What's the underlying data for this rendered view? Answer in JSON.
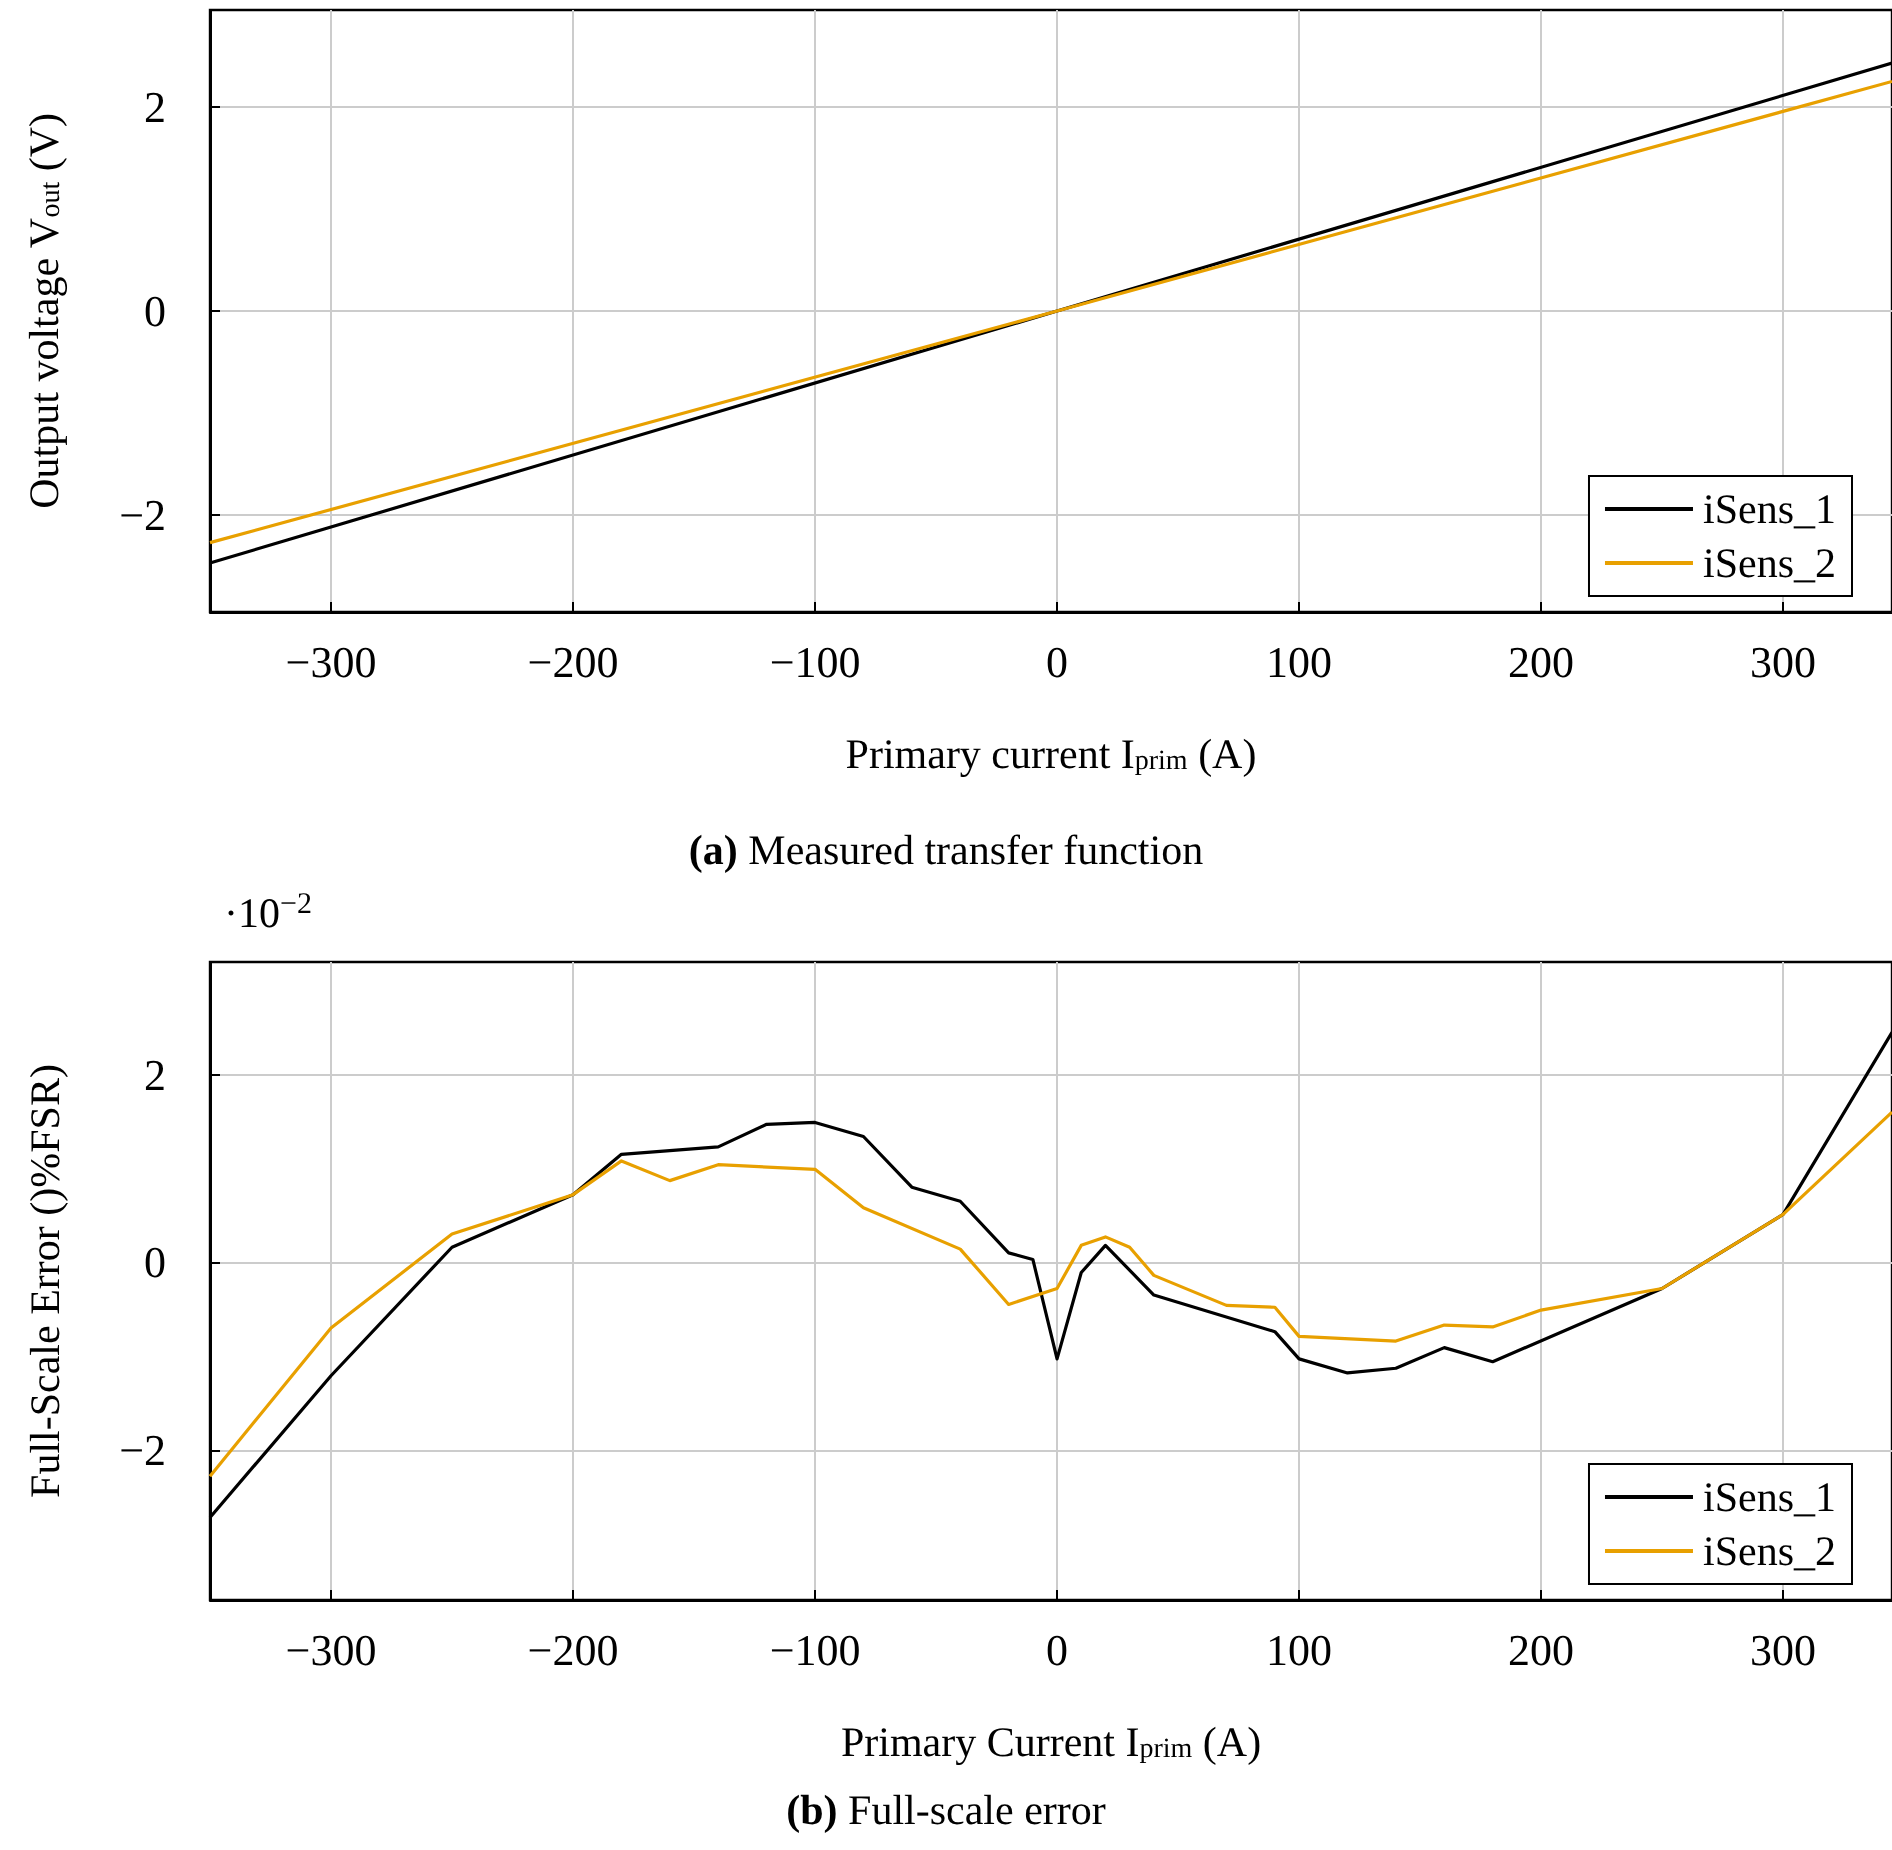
{
  "chart_data": [
    {
      "type": "line",
      "title": "(a) Measured transfer function",
      "xlabel": "Primary current I$_{prim}$ (A)",
      "ylabel": "Output voltage V$_{out}$ (V)",
      "xlim": [
        -350,
        345
      ],
      "xticks": [
        -300,
        -200,
        -100,
        0,
        100,
        200,
        300
      ],
      "ylim": [
        -2.95,
        2.95
      ],
      "yticks": [
        -2,
        0,
        2
      ],
      "grid": true,
      "legend": "bottom right",
      "series": [
        {
          "name": "iSens_1",
          "color": "#000000",
          "x": [
            -350,
            0,
            345
          ],
          "values": [
            -2.47,
            0,
            2.43
          ]
        },
        {
          "name": "iSens_2",
          "color": "#e8a000",
          "x": [
            -350,
            0,
            345
          ],
          "values": [
            -2.27,
            0,
            2.25
          ]
        }
      ]
    },
    {
      "type": "line",
      "title": "(b) Full-scale error",
      "xlabel": "Primary Current I$_{prim}$ (A)",
      "ylabel": "Full-Scale Error ()%FSR)",
      "annotations": [
        "·10$^{−2}$"
      ],
      "xlim": [
        -350,
        345
      ],
      "xticks": [
        -300,
        -200,
        -100,
        0,
        100,
        200,
        300
      ],
      "ylim": [
        -3.6,
        3.2
      ],
      "yticks": [
        -2,
        0,
        2
      ],
      "grid": true,
      "legend": "bottom right",
      "series": [
        {
          "name": "iSens_1",
          "color": "#000000",
          "x": [
            -350,
            -300,
            -250,
            -200,
            -180,
            -140,
            -120,
            -100,
            -80,
            -60,
            -40,
            -20,
            -10,
            0,
            10,
            20,
            40,
            90,
            100,
            120,
            140,
            160,
            180,
            250,
            300,
            345
          ],
          "values": [
            -2.72,
            -1.21,
            0.16,
            0.72,
            1.15,
            1.23,
            1.47,
            1.49,
            1.34,
            0.8,
            0.65,
            0.1,
            0.03,
            -1.03,
            -0.11,
            0.18,
            -0.35,
            -0.74,
            -1.03,
            -1.18,
            -1.13,
            -0.91,
            -1.06,
            -0.28,
            0.51,
            2.45
          ]
        },
        {
          "name": "iSens_2",
          "color": "#e8a000",
          "x": [
            -350,
            -300,
            -250,
            -200,
            -180,
            -160,
            -140,
            -100,
            -80,
            -40,
            -20,
            0,
            10,
            20,
            30,
            40,
            70,
            90,
            100,
            140,
            160,
            180,
            200,
            250,
            300,
            345
          ],
          "values": [
            -2.28,
            -0.7,
            0.3,
            0.72,
            1.08,
            0.87,
            1.04,
            0.99,
            0.58,
            0.14,
            -0.45,
            -0.28,
            0.18,
            0.27,
            0.16,
            -0.14,
            -0.46,
            -0.48,
            -0.79,
            -0.84,
            -0.67,
            -0.69,
            -0.51,
            -0.28,
            0.51,
            1.6
          ]
        }
      ]
    }
  ]
}
